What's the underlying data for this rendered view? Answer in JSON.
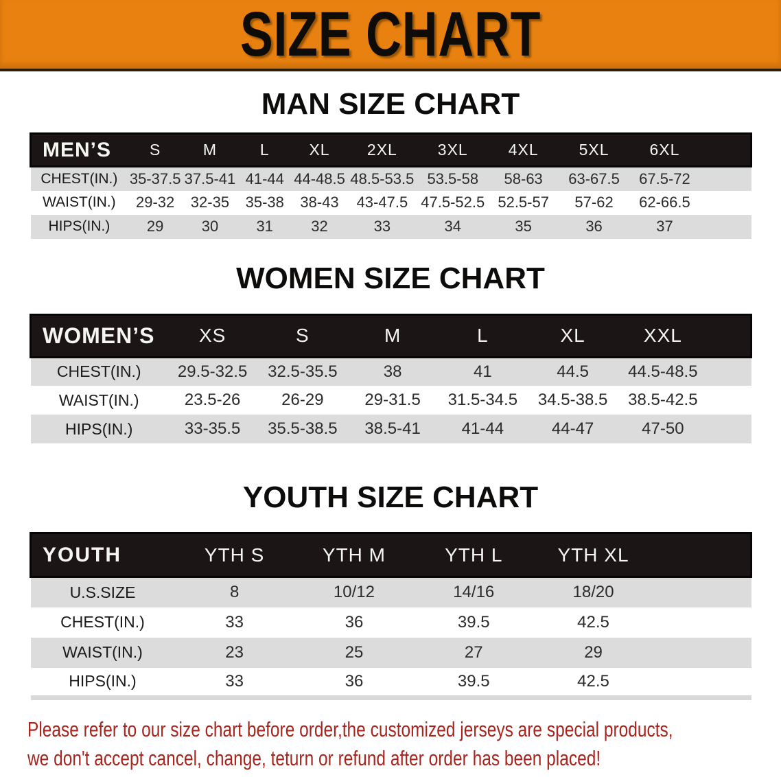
{
  "banner": {
    "title": "SIZE CHART"
  },
  "colors": {
    "banner_bg": "#e8810f",
    "table_header_bg": "#1b1615",
    "row_stripe": "#dcdcdc",
    "footer_text": "#a8251e",
    "banner_text": "#0e0c09"
  },
  "sections": [
    {
      "title": "MAN SIZE CHART",
      "header_label": "MEN’S",
      "sizes": [
        "S",
        "M",
        "L",
        "XL",
        "2XL",
        "3XL",
        "4XL",
        "5XL",
        "6XL"
      ],
      "rows": [
        {
          "label": "CHEST(IN.)",
          "values": [
            "35-37.5",
            "37.5-41",
            "41-44",
            "44-48.5",
            "48.5-53.5",
            "53.5-58",
            "58-63",
            "63-67.5",
            "67.5-72"
          ]
        },
        {
          "label": "WAIST(IN.)",
          "values": [
            "29-32",
            "32-35",
            "35-38",
            "38-43",
            "43-47.5",
            "47.5-52.5",
            "52.5-57",
            "57-62",
            "62-66.5"
          ]
        },
        {
          "label": "HIPS(IN.)",
          "values": [
            "29",
            "30",
            "31",
            "32",
            "33",
            "34",
            "35",
            "36",
            "37"
          ]
        }
      ]
    },
    {
      "title": "WOMEN SIZE CHART",
      "header_label": "WOMEN’S",
      "sizes": [
        "XS",
        "S",
        "M",
        "L",
        "XL",
        "XXL"
      ],
      "rows": [
        {
          "label": "CHEST(IN.)",
          "values": [
            "29.5-32.5",
            "32.5-35.5",
            "38",
            "41",
            "44.5",
            "44.5-48.5"
          ]
        },
        {
          "label": "WAIST(IN.)",
          "values": [
            "23.5-26",
            "26-29",
            "29-31.5",
            "31.5-34.5",
            "34.5-38.5",
            "38.5-42.5"
          ]
        },
        {
          "label": "HIPS(IN.)",
          "values": [
            "33-35.5",
            "35.5-38.5",
            "38.5-41",
            "41-44",
            "44-47",
            "47-50"
          ]
        }
      ]
    },
    {
      "title": "YOUTH SIZE CHART",
      "header_label": "YOUTH",
      "sizes": [
        "YTH S",
        "YTH M",
        "YTH L",
        "YTH XL"
      ],
      "rows": [
        {
          "label": "U.S.SIZE",
          "values": [
            "8",
            "10/12",
            "14/16",
            "18/20"
          ]
        },
        {
          "label": "CHEST(IN.)",
          "values": [
            "33",
            "36",
            "39.5",
            "42.5"
          ]
        },
        {
          "label": "WAIST(IN.)",
          "values": [
            "23",
            "25",
            "27",
            "29"
          ]
        },
        {
          "label": "HIPS(IN.)",
          "values": [
            "33",
            "36",
            "39.5",
            "42.5"
          ]
        }
      ]
    }
  ],
  "footer": {
    "line1": "Please refer to our size chart before order,the customized jerseys are special products,",
    "line2": "we don't accept cancel, change, teturn or refund after order has been placed!"
  },
  "chart_data": [
    {
      "type": "table",
      "title": "MAN SIZE CHART",
      "columns": [
        "MEN’S",
        "S",
        "M",
        "L",
        "XL",
        "2XL",
        "3XL",
        "4XL",
        "5XL",
        "6XL"
      ],
      "rows": [
        [
          "CHEST(IN.)",
          "35-37.5",
          "37.5-41",
          "41-44",
          "44-48.5",
          "48.5-53.5",
          "53.5-58",
          "58-63",
          "63-67.5",
          "67.5-72"
        ],
        [
          "WAIST(IN.)",
          "29-32",
          "32-35",
          "35-38",
          "38-43",
          "43-47.5",
          "47.5-52.5",
          "52.5-57",
          "57-62",
          "62-66.5"
        ],
        [
          "HIPS(IN.)",
          "29",
          "30",
          "31",
          "32",
          "33",
          "34",
          "35",
          "36",
          "37"
        ]
      ]
    },
    {
      "type": "table",
      "title": "WOMEN SIZE CHART",
      "columns": [
        "WOMEN’S",
        "XS",
        "S",
        "M",
        "L",
        "XL",
        "XXL"
      ],
      "rows": [
        [
          "CHEST(IN.)",
          "29.5-32.5",
          "32.5-35.5",
          "38",
          "41",
          "44.5",
          "44.5-48.5"
        ],
        [
          "WAIST(IN.)",
          "23.5-26",
          "26-29",
          "29-31.5",
          "31.5-34.5",
          "34.5-38.5",
          "38.5-42.5"
        ],
        [
          "HIPS(IN.)",
          "33-35.5",
          "35.5-38.5",
          "38.5-41",
          "41-44",
          "44-47",
          "47-50"
        ]
      ]
    },
    {
      "type": "table",
      "title": "YOUTH SIZE CHART",
      "columns": [
        "YOUTH",
        "YTH S",
        "YTH M",
        "YTH L",
        "YTH XL"
      ],
      "rows": [
        [
          "U.S.SIZE",
          "8",
          "10/12",
          "14/16",
          "18/20"
        ],
        [
          "CHEST(IN.)",
          "33",
          "36",
          "39.5",
          "42.5"
        ],
        [
          "WAIST(IN.)",
          "23",
          "25",
          "27",
          "29"
        ],
        [
          "HIPS(IN.)",
          "33",
          "36",
          "39.5",
          "42.5"
        ]
      ]
    }
  ]
}
